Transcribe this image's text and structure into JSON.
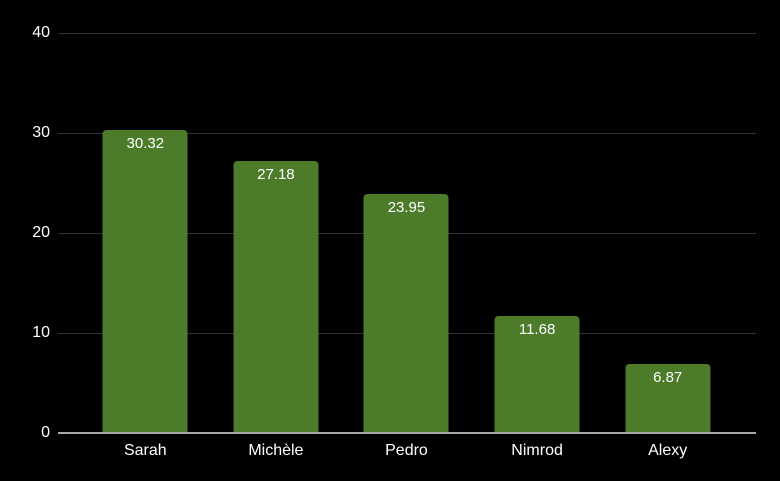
{
  "chart_data": {
    "type": "bar",
    "categories": [
      "Sarah",
      "Michèle",
      "Pedro",
      "Nimrod",
      "Alexy"
    ],
    "values": [
      30.32,
      27.18,
      23.95,
      11.68,
      6.87
    ],
    "value_labels": [
      "30.32",
      "27.18",
      "23.95",
      "11.68",
      "6.87"
    ],
    "title": "",
    "xlabel": "",
    "ylabel": "",
    "ylim": [
      0,
      40
    ],
    "yticks": [
      40,
      30,
      20,
      10,
      0
    ],
    "ytick_labels": [
      "40",
      "30",
      "20",
      "10",
      "0"
    ],
    "grid": true,
    "legend": false,
    "layout": {
      "legend_position": "none",
      "bar_corner_radius_px": 4,
      "value_label_position": "inside-top"
    },
    "colors": {
      "background": "#000000",
      "bar": "#4c7b2a",
      "gridline": "#333333",
      "axis_line": "#a6a6a6",
      "tick_label": "#ffffff",
      "bar_label": "#ffffff"
    }
  }
}
